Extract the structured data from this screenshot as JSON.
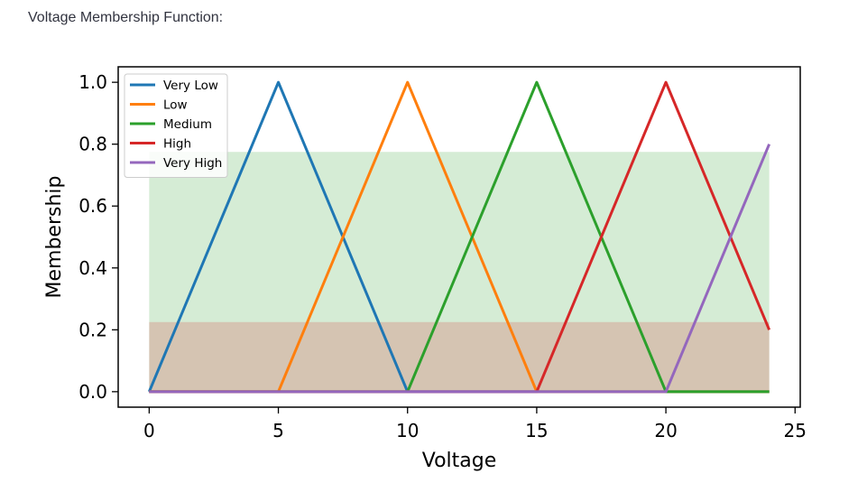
{
  "heading": "Voltage Membership Function:",
  "chart_data": {
    "type": "line",
    "xlabel": "Voltage",
    "ylabel": "Membership",
    "xlim": [
      -1.2,
      25.2
    ],
    "ylim": [
      -0.05,
      1.05
    ],
    "xticks": [
      0,
      5,
      10,
      15,
      20,
      25
    ],
    "yticks": [
      0.0,
      0.2,
      0.4,
      0.6,
      0.8,
      1.0
    ],
    "legend_position": "top-left",
    "grid": false,
    "series": [
      {
        "name": "Very Low",
        "color": "#1f77b4",
        "x": [
          0,
          5,
          10,
          24
        ],
        "y": [
          0,
          1,
          0,
          0
        ]
      },
      {
        "name": "Low",
        "color": "#ff7f0e",
        "x": [
          0,
          5,
          10,
          15,
          24
        ],
        "y": [
          0,
          0,
          1,
          0,
          0
        ]
      },
      {
        "name": "Medium",
        "color": "#2ca02c",
        "x": [
          0,
          10,
          15,
          20,
          24
        ],
        "y": [
          0,
          0,
          1,
          0,
          0
        ]
      },
      {
        "name": "High",
        "color": "#d62728",
        "x": [
          0,
          15,
          20,
          24
        ],
        "y": [
          0,
          0,
          1,
          0.2
        ]
      },
      {
        "name": "Very High",
        "color": "#9467bd",
        "x": [
          0,
          20,
          24
        ],
        "y": [
          0,
          0,
          0.8
        ]
      }
    ],
    "shaded_regions": [
      {
        "x": [
          0,
          24
        ],
        "y": [
          0,
          0.775
        ],
        "color": "#2ca02c",
        "opacity": 0.2
      },
      {
        "x": [
          0,
          24
        ],
        "y": [
          0,
          0.225
        ],
        "color": "#d62728",
        "opacity": 0.2
      }
    ]
  }
}
